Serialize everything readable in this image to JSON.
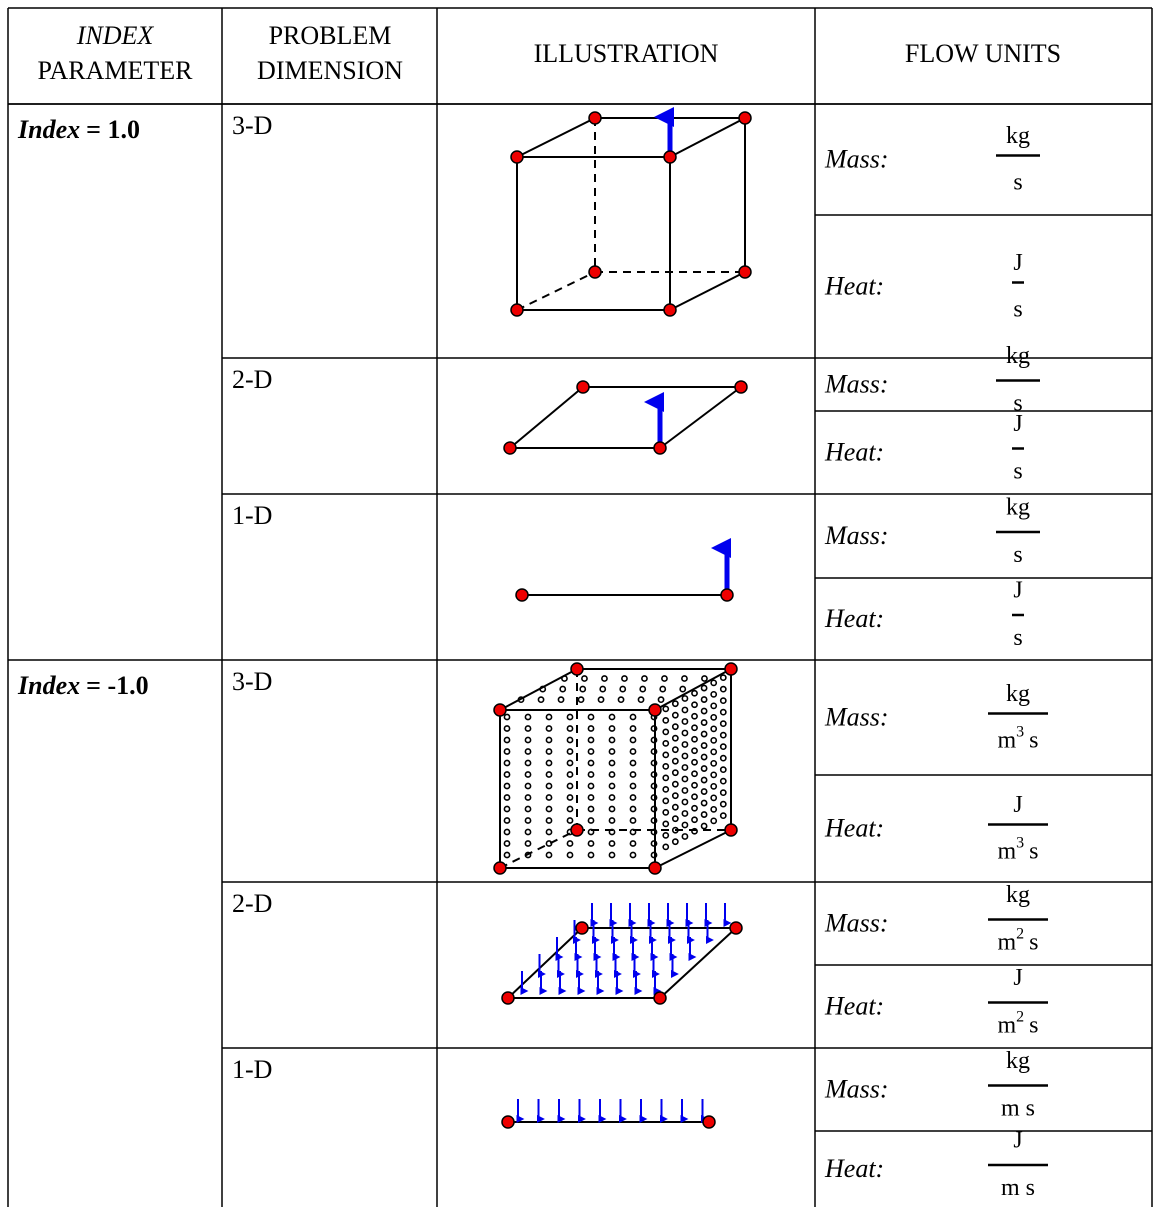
{
  "header": {
    "index_parameter": [
      "INDEX",
      "PARAMETER"
    ],
    "problem_dimension": [
      "PROBLEM",
      "DIMENSION"
    ],
    "illustration": "ILLUSTRATION",
    "flow_units": "FLOW UNITS"
  },
  "groups": [
    {
      "index_name": "Index",
      "index_value": "= 1.0",
      "rows": [
        {
          "dimension": "3-D",
          "units": [
            {
              "kind": "Mass:",
              "numerator": "kg",
              "denominator": {
                "base": "s"
              }
            },
            {
              "kind": "Heat:",
              "numerator": "J",
              "denominator": {
                "base": "s"
              }
            }
          ]
        },
        {
          "dimension": "2-D",
          "units": [
            {
              "kind": "Mass:",
              "numerator": "kg",
              "denominator": {
                "base": "s"
              }
            },
            {
              "kind": "Heat:",
              "numerator": "J",
              "denominator": {
                "base": "s"
              }
            }
          ]
        },
        {
          "dimension": "1-D",
          "units": [
            {
              "kind": "Mass:",
              "numerator": "kg",
              "denominator": {
                "base": "s"
              }
            },
            {
              "kind": "Heat:",
              "numerator": "J",
              "denominator": {
                "base": "s"
              }
            }
          ]
        }
      ]
    },
    {
      "index_name": "Index",
      "index_value": "= -1.0",
      "rows": [
        {
          "dimension": "3-D",
          "units": [
            {
              "kind": "Mass:",
              "numerator": "kg",
              "denominator": {
                "base": "m",
                "sup": "3",
                "tail": "s"
              }
            },
            {
              "kind": "Heat:",
              "numerator": "J",
              "denominator": {
                "base": "m",
                "sup": "3",
                "tail": "s"
              }
            }
          ]
        },
        {
          "dimension": "2-D",
          "units": [
            {
              "kind": "Mass:",
              "numerator": "kg",
              "denominator": {
                "base": "m",
                "sup": "2",
                "tail": "s"
              }
            },
            {
              "kind": "Heat:",
              "numerator": "J",
              "denominator": {
                "base": "m",
                "sup": "2",
                "tail": "s"
              }
            }
          ]
        },
        {
          "dimension": "1-D",
          "units": [
            {
              "kind": "Mass:",
              "numerator": "kg",
              "denominator": {
                "base": "m s"
              }
            },
            {
              "kind": "Heat:",
              "numerator": "J",
              "denominator": {
                "base": "m s"
              }
            }
          ]
        }
      ]
    }
  ]
}
